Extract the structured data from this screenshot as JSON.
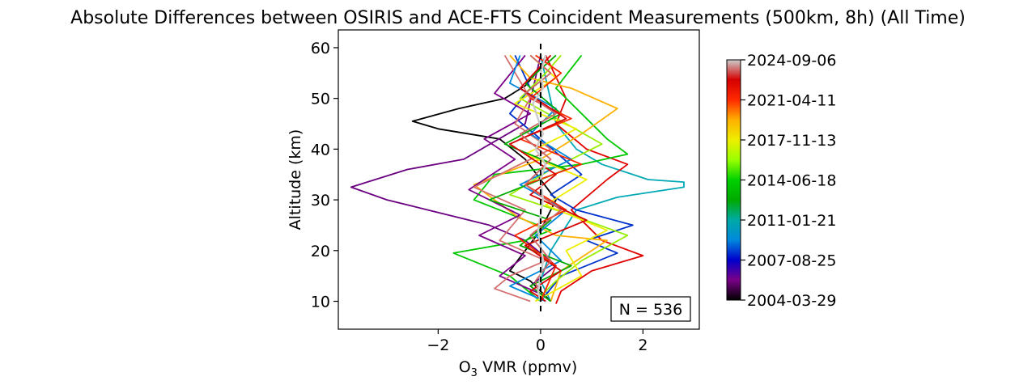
{
  "chart_data": {
    "type": "line",
    "title": "Absolute Differences between OSIRIS and ACE-FTS Coincident Measurements (500km, 8h) (All Time)",
    "xlabel_main": "O",
    "xlabel_sub": "3",
    "xlabel_rest": " VMR (ppmv)",
    "ylabel": "Altitude (km)",
    "xlim": [
      -3.95,
      3.1
    ],
    "ylim": [
      4.5,
      63.5
    ],
    "xticks": [
      -2,
      0,
      2
    ],
    "xtick_labels": [
      "−2",
      "0",
      "2"
    ],
    "yticks": [
      10,
      20,
      30,
      40,
      50,
      60
    ],
    "ytick_labels": [
      "10",
      "20",
      "30",
      "40",
      "50",
      "60"
    ],
    "annotation": "N = 536",
    "reference_line": {
      "x": 0,
      "style": "dashed",
      "color": "#000000"
    },
    "colorbar": {
      "colormap": "nipy_spectral",
      "tick_labels": [
        "2004-03-29",
        "2007-08-25",
        "2011-01-21",
        "2014-06-18",
        "2017-11-13",
        "2021-04-11",
        "2024-09-06"
      ],
      "stops": [
        "#000000",
        "#7a0087",
        "#0000cc",
        "#0088dd",
        "#00aaa6",
        "#00aa00",
        "#00d000",
        "#99ff00",
        "#eeee00",
        "#ffb000",
        "#ff2a00",
        "#d40000",
        "#cccccc"
      ]
    },
    "series": [
      {
        "color": "#000000",
        "x": [
          0.1,
          0.0,
          -0.3,
          -0.7,
          -1.6,
          -2.5,
          -2.0,
          -0.8,
          -0.3,
          0.3,
          0.0,
          -0.3,
          -0.6,
          -0.2,
          0.0,
          0.2
        ],
        "y": [
          58.5,
          56,
          52.5,
          50,
          48,
          45.5,
          44,
          42,
          38,
          30,
          24,
          20,
          16,
          14,
          12,
          10
        ]
      },
      {
        "color": "#6a0080",
        "x": [
          0.0,
          -0.3,
          -1.5,
          -2.6,
          -3.7,
          -3.0,
          -2.2,
          -1.0,
          -0.3,
          0.3,
          -0.2,
          0.2
        ],
        "y": [
          58.5,
          45,
          38,
          36,
          32.5,
          30,
          28,
          25,
          22,
          17,
          13,
          10
        ]
      },
      {
        "color": "#00a9b5",
        "x": [
          0.0,
          0.3,
          0.7,
          1.2,
          2.1,
          2.8,
          2.8,
          1.5,
          0.7,
          0.2,
          0.0,
          0.2
        ],
        "y": [
          58.5,
          45,
          40,
          37,
          34,
          33.5,
          32.5,
          30.5,
          28,
          20,
          14,
          10
        ]
      },
      {
        "color": "#e00000",
        "x": [
          0.1,
          0.5,
          0.3,
          0.9,
          1.7,
          1.3,
          0.6,
          1.2,
          2.0,
          1.0,
          0.4,
          0.3
        ],
        "y": [
          58.5,
          50,
          45,
          40,
          37,
          34,
          28,
          22,
          19,
          16,
          12,
          9.5
        ]
      },
      {
        "color": "#00c800",
        "x": [
          0.8,
          0.3,
          0.9,
          1.3,
          1.7,
          0.8,
          -0.9,
          -1.3,
          0.2,
          -0.3,
          -1.7,
          -0.6,
          0.0
        ],
        "y": [
          58.5,
          52,
          46,
          42,
          39,
          37,
          35,
          30,
          24,
          22,
          19.5,
          15,
          10
        ]
      },
      {
        "color": "#0033cc",
        "x": [
          -0.5,
          -0.2,
          -0.6,
          0.0,
          0.8,
          0.2,
          0.7,
          1.8,
          0.9,
          1.5,
          0.4,
          0.0
        ],
        "y": [
          58.5,
          52,
          47,
          42,
          35,
          31,
          28,
          25,
          22,
          19.5,
          15,
          10
        ]
      },
      {
        "color": "#ffb000",
        "x": [
          -0.6,
          -0.2,
          0.6,
          1.5,
          0.8,
          0.0,
          -1.3,
          -0.5,
          0.3,
          1.3,
          0.4,
          0.2
        ],
        "y": [
          58.5,
          54,
          52,
          48,
          43,
          38,
          33,
          27,
          23,
          22,
          16,
          10
        ]
      },
      {
        "color": "#99ee00",
        "x": [
          0.4,
          0.1,
          -0.4,
          0.5,
          1.2,
          0.2,
          -0.6,
          0.6,
          1.7,
          0.8,
          0.3,
          -0.1
        ],
        "y": [
          58.5,
          55,
          50,
          45,
          41,
          36,
          31,
          27,
          23,
          18,
          14,
          10
        ]
      },
      {
        "color": "#7a0087",
        "x": [
          -0.3,
          -0.9,
          -0.2,
          -1.1,
          -0.5,
          -1.4,
          -0.4,
          -1.2,
          -0.3,
          -0.8,
          0.1
        ],
        "y": [
          58.5,
          51,
          47,
          42,
          38,
          32,
          27,
          23,
          19,
          15,
          11
        ]
      },
      {
        "color": "#d47070",
        "x": [
          -0.7,
          -0.2,
          -0.5,
          0.2,
          -1.3,
          -0.3,
          -0.8,
          0.1,
          -0.6,
          -0.9,
          -0.2
        ],
        "y": [
          58.5,
          50,
          45,
          40,
          32.5,
          28,
          22,
          18,
          15,
          12.5,
          10
        ]
      },
      {
        "color": "#0088dd",
        "x": [
          -0.4,
          -0.6,
          0.3,
          -0.2,
          0.6,
          -0.4,
          0.5,
          -0.1,
          0.4,
          -0.6,
          0.1
        ],
        "y": [
          58.5,
          53,
          48,
          43,
          38,
          33,
          28,
          23,
          18,
          13,
          10
        ]
      },
      {
        "color": "#eeee00",
        "x": [
          -0.2,
          0.3,
          -0.5,
          0.7,
          -0.3,
          0.9,
          0.1,
          1.3,
          0.5,
          0.8,
          -0.1
        ],
        "y": [
          58.5,
          54,
          49,
          44,
          39,
          34,
          29,
          24,
          20,
          15,
          10
        ]
      },
      {
        "color": "#00aa00",
        "x": [
          0.3,
          -0.3,
          0.4,
          -0.7,
          0.5,
          -1.0,
          0.2,
          -0.4,
          0.6,
          -0.2,
          0.2
        ],
        "y": [
          58.5,
          53,
          47,
          41,
          36,
          30,
          26,
          21,
          17,
          13,
          10
        ]
      },
      {
        "color": "#ff2a00",
        "x": [
          -0.1,
          0.4,
          -0.2,
          0.6,
          -0.4,
          0.8,
          -0.3,
          0.5,
          -0.5,
          0.3,
          0.0
        ],
        "y": [
          58.5,
          55,
          50,
          46,
          42,
          37,
          33,
          28,
          23,
          17,
          10
        ]
      },
      {
        "color": "#d40000",
        "x": [
          0.2,
          -0.4,
          0.5,
          -0.6,
          0.3,
          -0.2,
          0.9,
          -0.3,
          0.4,
          -0.2,
          0.1
        ],
        "y": [
          58.5,
          52,
          46,
          41,
          35,
          31,
          26,
          21,
          16,
          12,
          10
        ]
      },
      {
        "color": "#cc6666",
        "x": [
          -0.2,
          0.2,
          -0.3,
          0.3,
          -0.4,
          0.2,
          -0.3,
          0.4,
          -0.2,
          0.2,
          -0.1,
          0.0
        ],
        "y": [
          58.5,
          55,
          51,
          47,
          43,
          38,
          33,
          28,
          23,
          18,
          14,
          10
        ]
      },
      {
        "color": "#cccccc",
        "x": [
          0.1,
          0.0,
          0.05,
          -0.15,
          -0.05,
          0.05,
          -0.1,
          0.1,
          0.0,
          0.05,
          0.0,
          -0.05,
          0.0,
          0.05,
          0.0,
          -0.05,
          0.0
        ],
        "y": [
          58.5,
          55,
          52,
          49,
          46,
          43,
          40,
          37,
          34,
          30,
          27,
          24,
          21,
          18,
          15,
          12,
          10
        ]
      }
    ]
  }
}
